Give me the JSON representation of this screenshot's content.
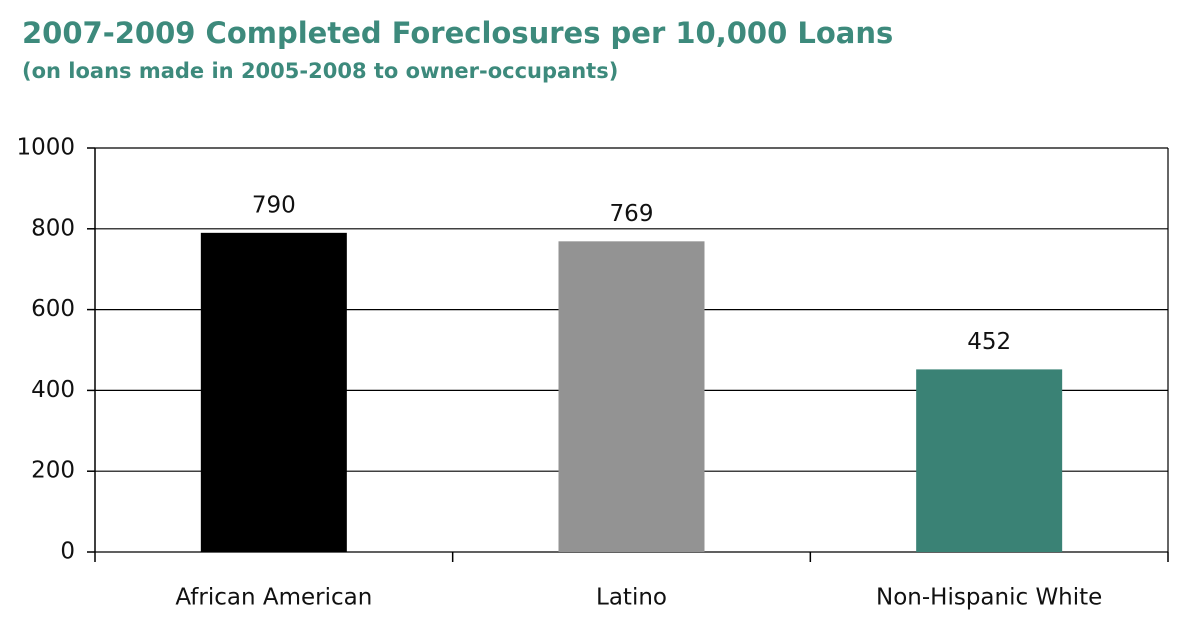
{
  "chart_data": {
    "type": "bar",
    "title": "2007-2009 Completed Foreclosures per 10,000 Loans",
    "subtitle": "(on loans made in 2005-2008 to owner-occupants)",
    "categories": [
      "African American",
      "Latino",
      "Non-Hispanic White"
    ],
    "values": [
      790,
      769,
      452
    ],
    "colors": [
      "#000000",
      "#939393",
      "#3a8275"
    ],
    "ylim": [
      0,
      1000
    ],
    "yticks": [
      0,
      200,
      400,
      600,
      800,
      1000
    ],
    "grid": true
  }
}
